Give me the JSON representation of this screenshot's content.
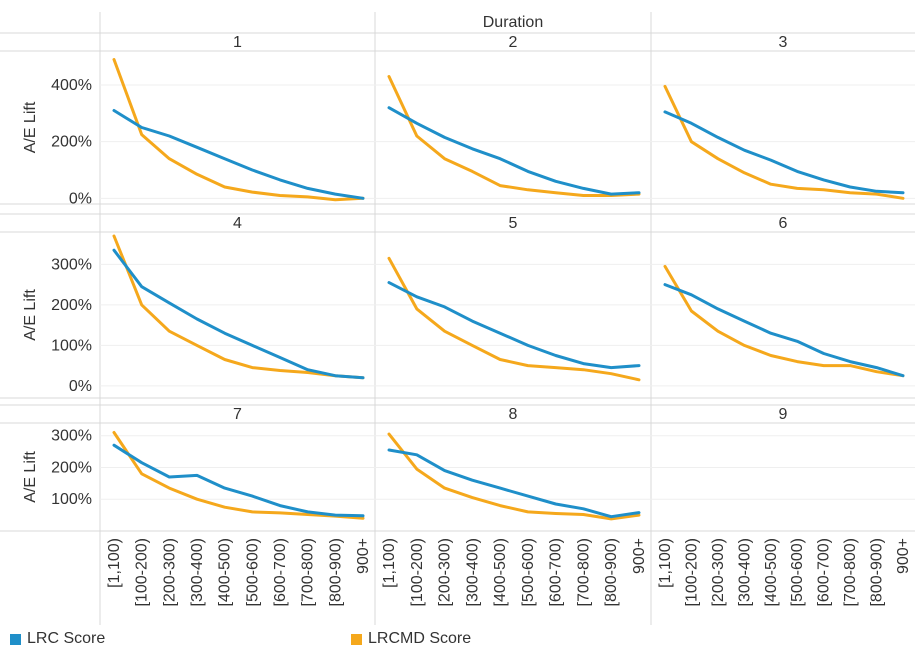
{
  "colors": {
    "lrc": "#1f8fc9",
    "lrcmd": "#f5a81c"
  },
  "chart_data": {
    "type": "line",
    "column_header": "Duration",
    "ylabel": "A/E Lift",
    "categories": [
      "[1,100)",
      "[100-200)",
      "[200-300)",
      "[300-400)",
      "[400-500)",
      "[500-600)",
      "[600-700)",
      "[700-800)",
      "[800-900)",
      "900+"
    ],
    "legend": [
      {
        "key": "lrc",
        "label": "LRC Score"
      },
      {
        "key": "lrcmd",
        "label": "LRCMD Score"
      }
    ],
    "rows": [
      {
        "ylim": [
          -20,
          520
        ],
        "yticks": [
          0,
          200,
          400
        ],
        "yticklabels": [
          "0%",
          "200%",
          "400%"
        ]
      },
      {
        "ylim": [
          -30,
          380
        ],
        "yticks": [
          0,
          100,
          200,
          300
        ],
        "yticklabels": [
          "0%",
          "100%",
          "200%",
          "300%"
        ]
      },
      {
        "ylim": [
          0,
          340
        ],
        "yticks": [
          100,
          200,
          300
        ],
        "yticklabels": [
          "100%",
          "200%",
          "300%"
        ]
      }
    ],
    "panels": [
      {
        "label": "1",
        "row": 0,
        "col": 0,
        "series": {
          "lrc": [
            310,
            250,
            220,
            180,
            140,
            100,
            65,
            35,
            15,
            0
          ],
          "lrcmd": [
            490,
            225,
            140,
            85,
            40,
            22,
            10,
            5,
            -5,
            0
          ]
        }
      },
      {
        "label": "2",
        "row": 0,
        "col": 1,
        "series": {
          "lrc": [
            320,
            265,
            215,
            175,
            140,
            95,
            60,
            35,
            15,
            20
          ],
          "lrcmd": [
            430,
            220,
            140,
            95,
            45,
            30,
            20,
            10,
            10,
            15
          ]
        }
      },
      {
        "label": "3",
        "row": 0,
        "col": 2,
        "series": {
          "lrc": [
            305,
            265,
            215,
            170,
            135,
            95,
            65,
            40,
            25,
            20
          ],
          "lrcmd": [
            395,
            200,
            140,
            90,
            50,
            35,
            30,
            20,
            15,
            0
          ]
        }
      },
      {
        "label": "4",
        "row": 1,
        "col": 0,
        "series": {
          "lrc": [
            335,
            245,
            205,
            165,
            130,
            100,
            70,
            40,
            25,
            20
          ],
          "lrcmd": [
            370,
            200,
            135,
            100,
            65,
            45,
            38,
            33,
            25,
            20
          ]
        }
      },
      {
        "label": "5",
        "row": 1,
        "col": 1,
        "series": {
          "lrc": [
            255,
            220,
            195,
            160,
            130,
            100,
            75,
            55,
            45,
            50
          ],
          "lrcmd": [
            315,
            190,
            135,
            100,
            65,
            50,
            45,
            40,
            30,
            15
          ]
        }
      },
      {
        "label": "6",
        "row": 1,
        "col": 2,
        "series": {
          "lrc": [
            250,
            225,
            190,
            160,
            130,
            110,
            80,
            60,
            45,
            25
          ],
          "lrcmd": [
            295,
            185,
            135,
            100,
            75,
            60,
            50,
            50,
            35,
            25
          ]
        }
      },
      {
        "label": "7",
        "row": 2,
        "col": 0,
        "series": {
          "lrc": [
            270,
            215,
            170,
            175,
            135,
            110,
            80,
            60,
            50,
            48
          ],
          "lrcmd": [
            310,
            180,
            135,
            100,
            75,
            60,
            57,
            52,
            47,
            40
          ]
        }
      },
      {
        "label": "8",
        "row": 2,
        "col": 1,
        "series": {
          "lrc": [
            255,
            240,
            190,
            160,
            135,
            110,
            85,
            70,
            45,
            58
          ],
          "lrcmd": [
            305,
            195,
            135,
            105,
            80,
            60,
            55,
            52,
            38,
            50
          ]
        }
      },
      {
        "label": "9",
        "row": 2,
        "col": 2,
        "series": {
          "lrc": [],
          "lrcmd": []
        }
      }
    ]
  }
}
